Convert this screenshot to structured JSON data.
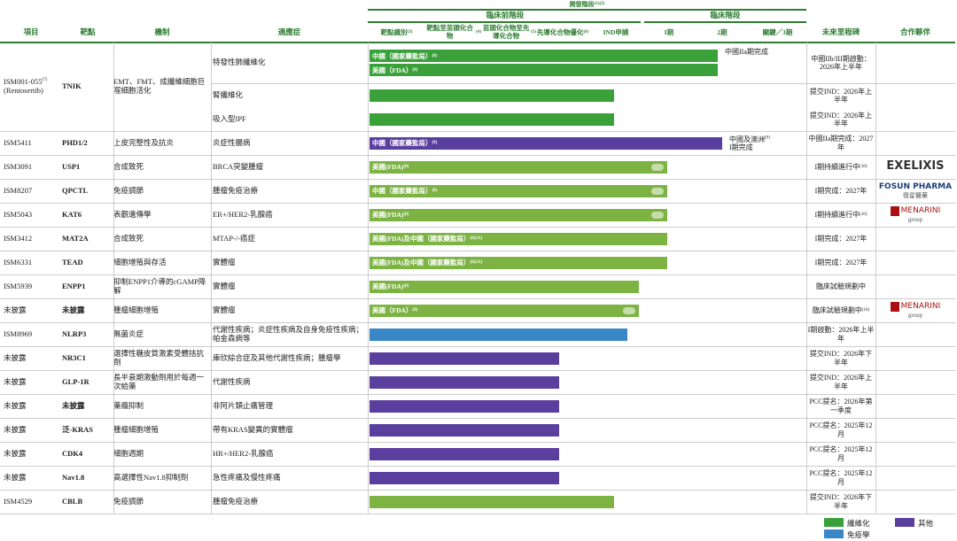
{
  "header": {
    "stage": "開發階段",
    "stage_sup": "(1)(2)",
    "preclinical": "臨床前階段",
    "clinical": "臨床階段",
    "columns": {
      "project": "項目",
      "target": "靶點",
      "mechanism": "機制",
      "indication": "適應症",
      "milestone": "未來里程碑",
      "partner": "合作夥伴"
    },
    "stages": [
      {
        "label": "靶點識別",
        "sup": "(3)"
      },
      {
        "label": "靶點至苗頭化合物",
        "sup": "(4)"
      },
      {
        "label": "苗頭化合物至先導化合物",
        "sup": "(5)"
      },
      {
        "label": "先導化合物優化",
        "sup": "(6)"
      },
      {
        "label": "IND申請"
      },
      {
        "label": "I期"
      },
      {
        "label": "2期"
      },
      {
        "label": "關鍵／3期"
      }
    ]
  },
  "rows": [
    {
      "project": "ISM001-055",
      "project_sup": "(7)",
      "project_alias": "(Rentosertib)",
      "target": "TNIK",
      "mechanism": "EMT、FMT、成纖維細胞巨噬細胞活化",
      "indications": [
        {
          "name": "特發性肺纖維化",
          "milestone": "中國IIb/III期啟動：2026年上半年",
          "bars": [
            {
              "label": "中國（國家藥監局）",
              "sup": "(8)",
              "note": "中國IIa期完成"
            },
            {
              "label": "美國（FDA）",
              "sup": "(8)"
            }
          ]
        },
        {
          "name": "腎纖維化",
          "milestone": "提交IND：2026年上半年",
          "bars": [
            {}
          ]
        },
        {
          "name": "吸入型IPF",
          "milestone": "提交IND：2026年上半年",
          "bars": [
            {}
          ]
        }
      ]
    },
    {
      "project": "ISM5411",
      "target": "PHD1/2",
      "mechanism": "上皮完整性及抗炎",
      "indications": [
        {
          "name": "炎症性腸病",
          "milestone": "中國IIa期完成：2027年",
          "bars": [
            {
              "label": "中國（國家藥監局）",
              "sup": "(9)",
              "note": "中國及澳洲",
              "note_sup": "(9)",
              "note2": "I期完成"
            }
          ]
        }
      ]
    },
    {
      "project": "ISM3091",
      "target": "USP1",
      "mechanism": "合成致死",
      "partner": "EXELIXIS",
      "indications": [
        {
          "name": "BRCA突變腫瘤",
          "milestone": "I期持續進行中",
          "milestone_sup": "(10)",
          "bars": [
            {
              "label": "美國(FDA)",
              "sup": "(8)"
            }
          ]
        }
      ]
    },
    {
      "project": "ISM8207",
      "target": "QPCTL",
      "mechanism": "免疫調節",
      "partner": "FOSUN PHARMA",
      "partner_sub": "復星醫藥",
      "indications": [
        {
          "name": "腫瘤免疫治療",
          "milestone": "I期完成：2027年",
          "bars": [
            {
              "label": "中國（國家藥監局）",
              "sup": "(8)"
            }
          ]
        }
      ]
    },
    {
      "project": "ISM5043",
      "target": "KAT6",
      "mechanism": "表觀遺傳學",
      "partner": "MENARINI",
      "partner_sub": "group",
      "indications": [
        {
          "name": "ER+/HER2-乳腺癌",
          "milestone": "I期持續進行中",
          "milestone_sup": "(10)",
          "bars": [
            {
              "label": "美國(FDA)",
              "sup": "(8)"
            }
          ]
        }
      ]
    },
    {
      "project": "ISM3412",
      "target": "MAT2A",
      "mechanism": "合成致死",
      "indications": [
        {
          "name": "MTAP-/-癌症",
          "milestone": "I期完成：2027年",
          "bars": [
            {
              "label": "美國(FDA)及中國（國家藥監局）",
              "sup": "(8)(11)"
            }
          ]
        }
      ]
    },
    {
      "project": "ISM6331",
      "target": "TEAD",
      "mechanism": "細胞增殖與存活",
      "indications": [
        {
          "name": "實體瘤",
          "milestone": "I期完成：2027年",
          "bars": [
            {
              "label": "美國(FDA)及中國（國家藥監局）",
              "sup": "(8)(11)"
            }
          ]
        }
      ]
    },
    {
      "project": "ISM5939",
      "target": "ENPP1",
      "mechanism": "抑制ENPP1介導的cGAMP降解",
      "indications": [
        {
          "name": "實體瘤",
          "milestone": "臨床試驗規劃中",
          "bars": [
            {
              "label": "美國(FDA)",
              "sup": "(8)"
            }
          ]
        }
      ]
    },
    {
      "project": "未披露",
      "target": "未披露",
      "mechanism": "腫瘤細胞增殖",
      "partner": "MENARINI",
      "partner_sub": "group",
      "indications": [
        {
          "name": "實體瘤",
          "milestone": "臨床試驗規劃中",
          "milestone_sup": "(10)",
          "bars": [
            {
              "label": "美國（FDA）",
              "sup": "(8)"
            }
          ]
        }
      ]
    },
    {
      "project": "ISM8969",
      "target": "NLRP3",
      "mechanism": "無菌炎症",
      "indications": [
        {
          "name": "代謝性疾病；炎症性疾病及自身免疫性疾病；帕金森病等",
          "milestone": "I期啟動：2026年上半年",
          "bars": [
            {}
          ]
        }
      ]
    },
    {
      "project": "未披露",
      "target": "NR3C1",
      "mechanism": "選擇性糖皮質激素受體拮抗劑",
      "indications": [
        {
          "name": "庫欣綜合症及其他代謝性疾病；腫瘤學",
          "milestone": "提交IND：2026年下半年",
          "bars": [
            {}
          ]
        }
      ]
    },
    {
      "project": "未披露",
      "target": "GLP-1R",
      "mechanism": "長半衰期激動劑用於每週一次給藥",
      "indications": [
        {
          "name": "代謝性疾病",
          "milestone": "提交IND：2026年上半年",
          "bars": [
            {}
          ]
        }
      ]
    },
    {
      "project": "未披露",
      "target": "未披露",
      "mechanism": "藥癮抑制",
      "indications": [
        {
          "name": "非阿片類止痛管理",
          "milestone": "PCC提名：2026年第一季度",
          "bars": [
            {}
          ]
        }
      ]
    },
    {
      "project": "未披露",
      "target": "泛-KRAS",
      "mechanism": "腫瘤細胞增殖",
      "indications": [
        {
          "name": "帶有KRAS變異的實體瘤",
          "milestone": "PCC提名：2025年12月",
          "bars": [
            {}
          ]
        }
      ]
    },
    {
      "project": "未披露",
      "target": "CDK4",
      "mechanism": "細胞週期",
      "indications": [
        {
          "name": "HR+/HER2-乳腺癌",
          "milestone": "PCC提名：2025年12月",
          "bars": [
            {}
          ]
        }
      ]
    },
    {
      "project": "未披露",
      "target": "Nav1.8",
      "mechanism": "高選擇性Nav1.8抑制劑",
      "indications": [
        {
          "name": "急性疼痛及慢性疼痛",
          "milestone": "PCC提名：2025年12月",
          "bars": [
            {}
          ]
        }
      ]
    },
    {
      "project": "ISM4529",
      "target": "CBLB",
      "mechanism": "免疫調節",
      "indications": [
        {
          "name": "腫瘤免疫治療",
          "milestone": "提交IND：2026年下半年",
          "bars": [
            {}
          ]
        }
      ]
    }
  ],
  "legend": [
    {
      "label": "纖維化"
    },
    {
      "label": "免疫學"
    },
    {
      "label": "其他"
    }
  ]
}
